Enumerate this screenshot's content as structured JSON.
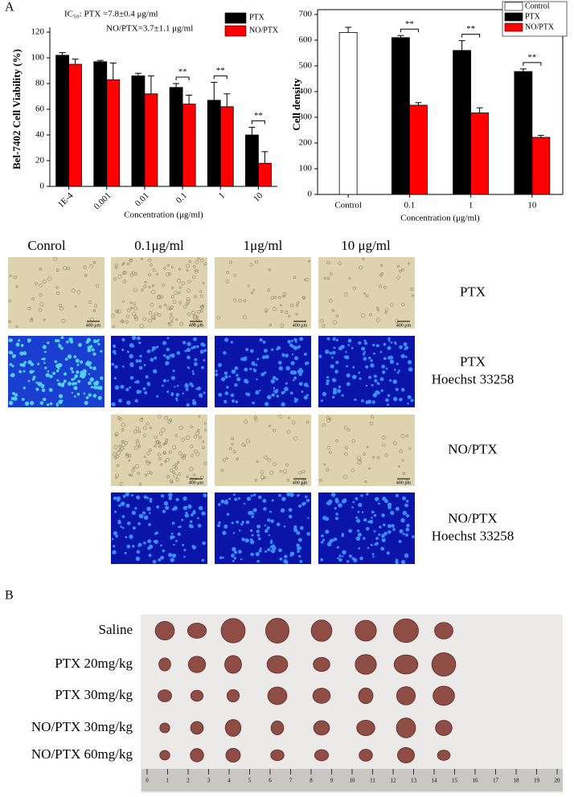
{
  "panel_labels": [
    "A",
    "B"
  ],
  "chart_data": [
    {
      "type": "bar",
      "annotations": [
        "IC₅₀:  PTX =7.8±0.4 μg/ml",
        "NO/PTX=3.7±1.1 μg/ml"
      ],
      "y_label": "Bel-7402 Cell Viability (%)",
      "x_label": "Concentration (μg/ml)",
      "categories": [
        "1E-4",
        "0.001",
        "0.01",
        "0.1",
        "1",
        "10"
      ],
      "series": [
        {
          "name": "PTX",
          "color": "#000000",
          "values": [
            102,
            97,
            86,
            77,
            67,
            40
          ],
          "errors": [
            2,
            1,
            2,
            3,
            14,
            6
          ]
        },
        {
          "name": "NO/PTX",
          "color": "#ff0000",
          "values": [
            95,
            83,
            72,
            64,
            62,
            18
          ],
          "errors": [
            4,
            13,
            14,
            7,
            10,
            9
          ]
        }
      ],
      "significance": [
        {
          "category": "0.1",
          "label": "**"
        },
        {
          "category": "1",
          "label": "**"
        },
        {
          "category": "10",
          "label": "**"
        }
      ],
      "ylim": [
        0,
        120
      ],
      "yticks": [
        0,
        20,
        40,
        60,
        80,
        100,
        120
      ],
      "legend": "upper right"
    },
    {
      "type": "bar",
      "y_label": "Cell density",
      "x_label": "Concentration (μg/ml)",
      "categories": [
        "Control",
        "0.1",
        "1",
        "10"
      ],
      "series": [
        {
          "name": "Control",
          "color": "#ffffff",
          "values": [
            630,
            null,
            null,
            null
          ],
          "errors": [
            20,
            null,
            null,
            null
          ]
        },
        {
          "name": "PTX",
          "color": "#000000",
          "values": [
            null,
            610,
            560,
            478
          ],
          "errors": [
            null,
            8,
            38,
            10
          ]
        },
        {
          "name": "NO/PTX",
          "color": "#ff0000",
          "values": [
            null,
            347,
            317,
            222
          ],
          "errors": [
            null,
            10,
            20,
            8
          ]
        }
      ],
      "significance": [
        {
          "category": "0.1",
          "label": "**"
        },
        {
          "category": "1",
          "label": "**"
        },
        {
          "category": "10",
          "label": "**"
        }
      ],
      "ylim": [
        0,
        700
      ],
      "yticks": [
        0,
        100,
        200,
        300,
        400,
        500,
        600,
        700
      ],
      "legend": "upper right"
    }
  ],
  "micrographs": {
    "column_headers": [
      "Conrol",
      "0.1μg/ml",
      "1μg/ml",
      "10 μg/ml"
    ],
    "row_labels": [
      [
        "PTX"
      ],
      [
        "PTX",
        "Hoechst 33258"
      ],
      [
        "NO/PTX"
      ],
      [
        "NO/PTX",
        "Hoechst 33258"
      ]
    ],
    "scale_bar_label": "400 μm"
  },
  "tumor_photo": {
    "row_labels": [
      "Saline",
      "PTX 20mg/kg",
      "PTX 30mg/kg",
      "NO/PTX 30mg/kg",
      "NO/PTX 60mg/kg"
    ],
    "ruler_labels": [
      "0",
      "1",
      "2",
      "3",
      "4",
      "5",
      "6",
      "7",
      "8",
      "9",
      "10",
      "11",
      "12",
      "13",
      "14",
      "15",
      "16",
      "17",
      "18",
      "19",
      "20"
    ]
  }
}
